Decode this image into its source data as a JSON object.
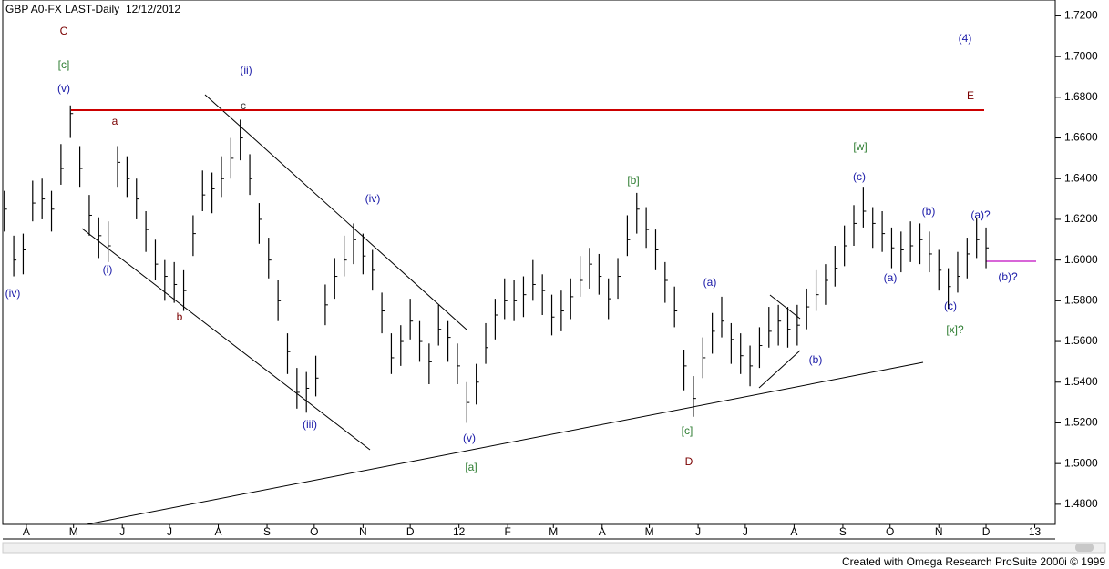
{
  "chart_data": {
    "type": "ohlc",
    "title": "GBP A0-FX LAST-Daily",
    "subtitle": "12/12/2012",
    "footer": "Created with Omega Research ProSuite 2000i © 1999",
    "color": "#000000",
    "x": [
      -14,
      -8,
      -2,
      4,
      10,
      16,
      22,
      28,
      34,
      40,
      46,
      52,
      58,
      64,
      70,
      76,
      82,
      88,
      94,
      100,
      106,
      112,
      118,
      124,
      130,
      136,
      142,
      148,
      154,
      160,
      166,
      172,
      178,
      184,
      190,
      196,
      202,
      208,
      214,
      220,
      226,
      232,
      238,
      244,
      250,
      256,
      262,
      268,
      274,
      280,
      286,
      292,
      298,
      304,
      310,
      316,
      322,
      328,
      334,
      340,
      346,
      352,
      358,
      364,
      370,
      376,
      382,
      388,
      394,
      400,
      406,
      412,
      418,
      424,
      430,
      436,
      442,
      448,
      454,
      460,
      466,
      472,
      478,
      484,
      490,
      496,
      502,
      508,
      514,
      520,
      526,
      532,
      538,
      544,
      550,
      556,
      562,
      568,
      574,
      580,
      586,
      592,
      598,
      604,
      610
    ],
    "high": [
      1.634,
      1.612,
      1.613,
      1.639,
      1.64,
      1.634,
      1.657,
      1.676,
      1.656,
      1.632,
      1.621,
      1.619,
      1.656,
      1.651,
      1.64,
      1.624,
      1.61,
      1.6,
      1.599,
      1.595,
      1.622,
      1.644,
      1.643,
      1.651,
      1.66,
      1.669,
      1.652,
      1.628,
      1.611,
      1.59,
      1.564,
      1.547,
      1.545,
      1.553,
      1.588,
      1.601,
      1.612,
      1.618,
      1.613,
      1.605,
      1.584,
      1.564,
      1.568,
      1.581,
      1.57,
      1.559,
      1.578,
      1.57,
      1.559,
      1.54,
      1.549,
      1.569,
      1.581,
      1.591,
      1.59,
      1.592,
      1.6,
      1.593,
      1.583,
      1.585,
      1.591,
      1.602,
      1.606,
      1.603,
      1.591,
      1.601,
      1.622,
      1.633,
      1.626,
      1.615,
      1.599,
      1.587,
      1.556,
      1.543,
      1.562,
      1.574,
      1.582,
      1.569,
      1.564,
      1.558,
      1.567,
      1.577,
      1.578,
      1.577,
      1.578,
      1.586,
      1.595,
      1.598,
      1.607,
      1.617,
      1.627,
      1.636,
      1.626,
      1.624,
      1.616,
      1.614,
      1.619,
      1.618,
      1.614,
      1.605,
      1.596,
      1.604,
      1.611,
      1.621,
      1.616
    ],
    "low": [
      1.614,
      1.592,
      1.593,
      1.619,
      1.62,
      1.614,
      1.637,
      1.66,
      1.636,
      1.612,
      1.601,
      1.599,
      1.636,
      1.631,
      1.62,
      1.604,
      1.59,
      1.58,
      1.579,
      1.575,
      1.602,
      1.624,
      1.623,
      1.631,
      1.64,
      1.649,
      1.632,
      1.608,
      1.591,
      1.57,
      1.544,
      1.527,
      1.525,
      1.533,
      1.568,
      1.581,
      1.592,
      1.598,
      1.593,
      1.585,
      1.564,
      1.544,
      1.548,
      1.561,
      1.55,
      1.539,
      1.558,
      1.55,
      1.539,
      1.52,
      1.529,
      1.549,
      1.561,
      1.571,
      1.57,
      1.572,
      1.58,
      1.573,
      1.563,
      1.565,
      1.571,
      1.582,
      1.586,
      1.583,
      1.571,
      1.581,
      1.602,
      1.613,
      1.606,
      1.595,
      1.579,
      1.567,
      1.536,
      1.523,
      1.542,
      1.554,
      1.562,
      1.549,
      1.544,
      1.538,
      1.547,
      1.557,
      1.558,
      1.557,
      1.558,
      1.566,
      1.575,
      1.578,
      1.587,
      1.597,
      1.607,
      1.616,
      1.606,
      1.604,
      1.596,
      1.594,
      1.599,
      1.598,
      1.594,
      1.585,
      1.576,
      1.584,
      1.591,
      1.601,
      1.596
    ],
    "close": [
      1.625,
      1.6,
      1.605,
      1.628,
      1.63,
      1.625,
      1.645,
      1.672,
      1.645,
      1.622,
      1.612,
      1.607,
      1.648,
      1.64,
      1.63,
      1.615,
      1.598,
      1.592,
      1.588,
      1.585,
      1.613,
      1.632,
      1.635,
      1.64,
      1.65,
      1.66,
      1.64,
      1.62,
      1.6,
      1.58,
      1.555,
      1.535,
      1.537,
      1.542,
      1.578,
      1.592,
      1.6,
      1.61,
      1.602,
      1.595,
      1.575,
      1.552,
      1.56,
      1.57,
      1.56,
      1.55,
      1.566,
      1.562,
      1.548,
      1.53,
      1.54,
      1.557,
      1.573,
      1.58,
      1.58,
      1.583,
      1.588,
      1.585,
      1.572,
      1.575,
      1.582,
      1.59,
      1.598,
      1.592,
      1.581,
      1.592,
      1.61,
      1.625,
      1.615,
      1.605,
      1.59,
      1.575,
      1.548,
      1.532,
      1.552,
      1.565,
      1.57,
      1.561,
      1.553,
      1.548,
      1.558,
      1.565,
      1.57,
      1.566,
      1.568,
      1.577,
      1.583,
      1.59,
      1.596,
      1.607,
      1.618,
      1.624,
      1.618,
      1.613,
      1.606,
      1.605,
      1.607,
      1.61,
      1.603,
      1.595,
      1.587,
      1.592,
      1.603,
      1.61,
      1.606
    ],
    "xlim": [
      -15,
      654
    ],
    "xticks": [
      {
        "value": 0,
        "label": "A"
      },
      {
        "value": 30,
        "label": "M"
      },
      {
        "value": 61,
        "label": "J"
      },
      {
        "value": 91,
        "label": "J"
      },
      {
        "value": 122,
        "label": "A"
      },
      {
        "value": 153,
        "label": "S"
      },
      {
        "value": 183,
        "label": "O"
      },
      {
        "value": 214,
        "label": "N"
      },
      {
        "value": 244,
        "label": "D"
      },
      {
        "value": 275,
        "label": "12"
      },
      {
        "value": 306,
        "label": "F"
      },
      {
        "value": 335,
        "label": "M"
      },
      {
        "value": 366,
        "label": "A"
      },
      {
        "value": 396,
        "label": "M"
      },
      {
        "value": 427,
        "label": "J"
      },
      {
        "value": 457,
        "label": "J"
      },
      {
        "value": 488,
        "label": "A"
      },
      {
        "value": 519,
        "label": "S"
      },
      {
        "value": 549,
        "label": "O"
      },
      {
        "value": 580,
        "label": "N"
      },
      {
        "value": 610,
        "label": "D"
      },
      {
        "value": 641,
        "label": "13"
      }
    ],
    "ylim": [
      1.4701,
      1.7278
    ],
    "yticks": [
      {
        "value": 1.72,
        "label": "1.7200"
      },
      {
        "value": 1.7,
        "label": "1.7000"
      },
      {
        "value": 1.68,
        "label": "1.6800"
      },
      {
        "value": 1.66,
        "label": "1.6600"
      },
      {
        "value": 1.64,
        "label": "1.6400"
      },
      {
        "value": 1.62,
        "label": "1.6200"
      },
      {
        "value": 1.6,
        "label": "1.6000"
      },
      {
        "value": 1.58,
        "label": "1.5800"
      },
      {
        "value": 1.56,
        "label": "1.5600"
      },
      {
        "value": 1.54,
        "label": "1.5400"
      },
      {
        "value": 1.52,
        "label": "1.5200"
      },
      {
        "value": 1.5,
        "label": "1.5000"
      },
      {
        "value": 1.48,
        "label": "1.4800"
      }
    ],
    "annotations": [
      {
        "text": "C",
        "color": "#7a0000"
      },
      {
        "text": "[c]",
        "color": "#2e7d32"
      },
      {
        "text": "(v)",
        "color": "#1a1aa8"
      },
      {
        "text": "a",
        "color": "#7a0000"
      },
      {
        "text": "(ii)",
        "color": "#1a1aa8"
      },
      {
        "text": "c",
        "color": "#333333"
      },
      {
        "text": "(i)",
        "color": "#1a1aa8"
      },
      {
        "text": "b",
        "color": "#7a0000"
      },
      {
        "text": "(iv)",
        "color": "#1a1aa8"
      },
      {
        "text": "(iii)",
        "color": "#1a1aa8"
      },
      {
        "text": "(iv)",
        "color": "#1a1aa8"
      },
      {
        "text": "(v)",
        "color": "#1a1aa8"
      },
      {
        "text": "[a]",
        "color": "#2e7d32"
      },
      {
        "text": "[b]",
        "color": "#2e7d32"
      },
      {
        "text": "D",
        "color": "#7a0000"
      },
      {
        "text": "[c]",
        "color": "#2e7d32"
      },
      {
        "text": "(a)",
        "color": "#1a1aa8"
      },
      {
        "text": "(b)",
        "color": "#1a1aa8"
      },
      {
        "text": "[w]",
        "color": "#2e7d32"
      },
      {
        "text": "(c)",
        "color": "#1a1aa8"
      },
      {
        "text": "(b)",
        "color": "#1a1aa8"
      },
      {
        "text": "(a)",
        "color": "#1a1aa8"
      },
      {
        "text": "(c)",
        "color": "#1a1aa8"
      },
      {
        "text": "[x]?",
        "color": "#2e7d32"
      },
      {
        "text": "(a)?",
        "color": "#1a1aa8"
      },
      {
        "text": "(b)?",
        "color": "#1a1aa8"
      },
      {
        "text": "(4)",
        "color": "#1a1aa8"
      },
      {
        "text": "E",
        "color": "#7a0000"
      }
    ]
  }
}
